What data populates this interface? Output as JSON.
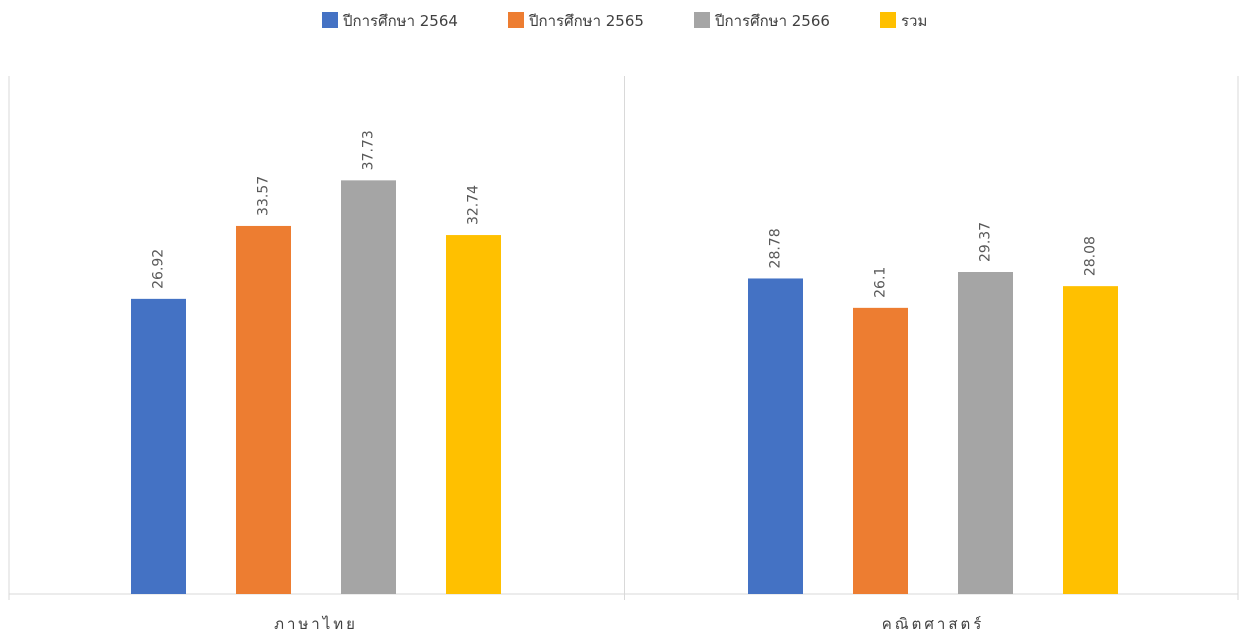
{
  "chart_data": {
    "type": "bar",
    "categories": [
      "ภาษาไทย",
      "คณิตศาสตร์"
    ],
    "series": [
      {
        "name": "ปีการศึกษา 2564",
        "values": [
          26.92,
          28.78
        ],
        "color": "#4472C4"
      },
      {
        "name": "ปีการศึกษา 2565",
        "values": [
          33.57,
          26.1
        ],
        "color": "#ED7D31"
      },
      {
        "name": "ปีการศึกษา 2566",
        "values": [
          37.73,
          29.37
        ],
        "color": "#A5A5A5"
      },
      {
        "name": "รวม",
        "values": [
          32.74,
          28.08
        ],
        "color": "#FFC000"
      }
    ],
    "data_labels": [
      [
        "26.92",
        "28.78"
      ],
      [
        "33.57",
        "26.1"
      ],
      [
        "37.73",
        "29.37"
      ],
      [
        "32.74",
        "28.08"
      ]
    ],
    "title": "",
    "xlabel": "",
    "ylabel": "",
    "ylim": [
      0,
      46.7
    ],
    "grid": false,
    "legend_position": "top-center",
    "axis_color": "#D9D9D9"
  }
}
